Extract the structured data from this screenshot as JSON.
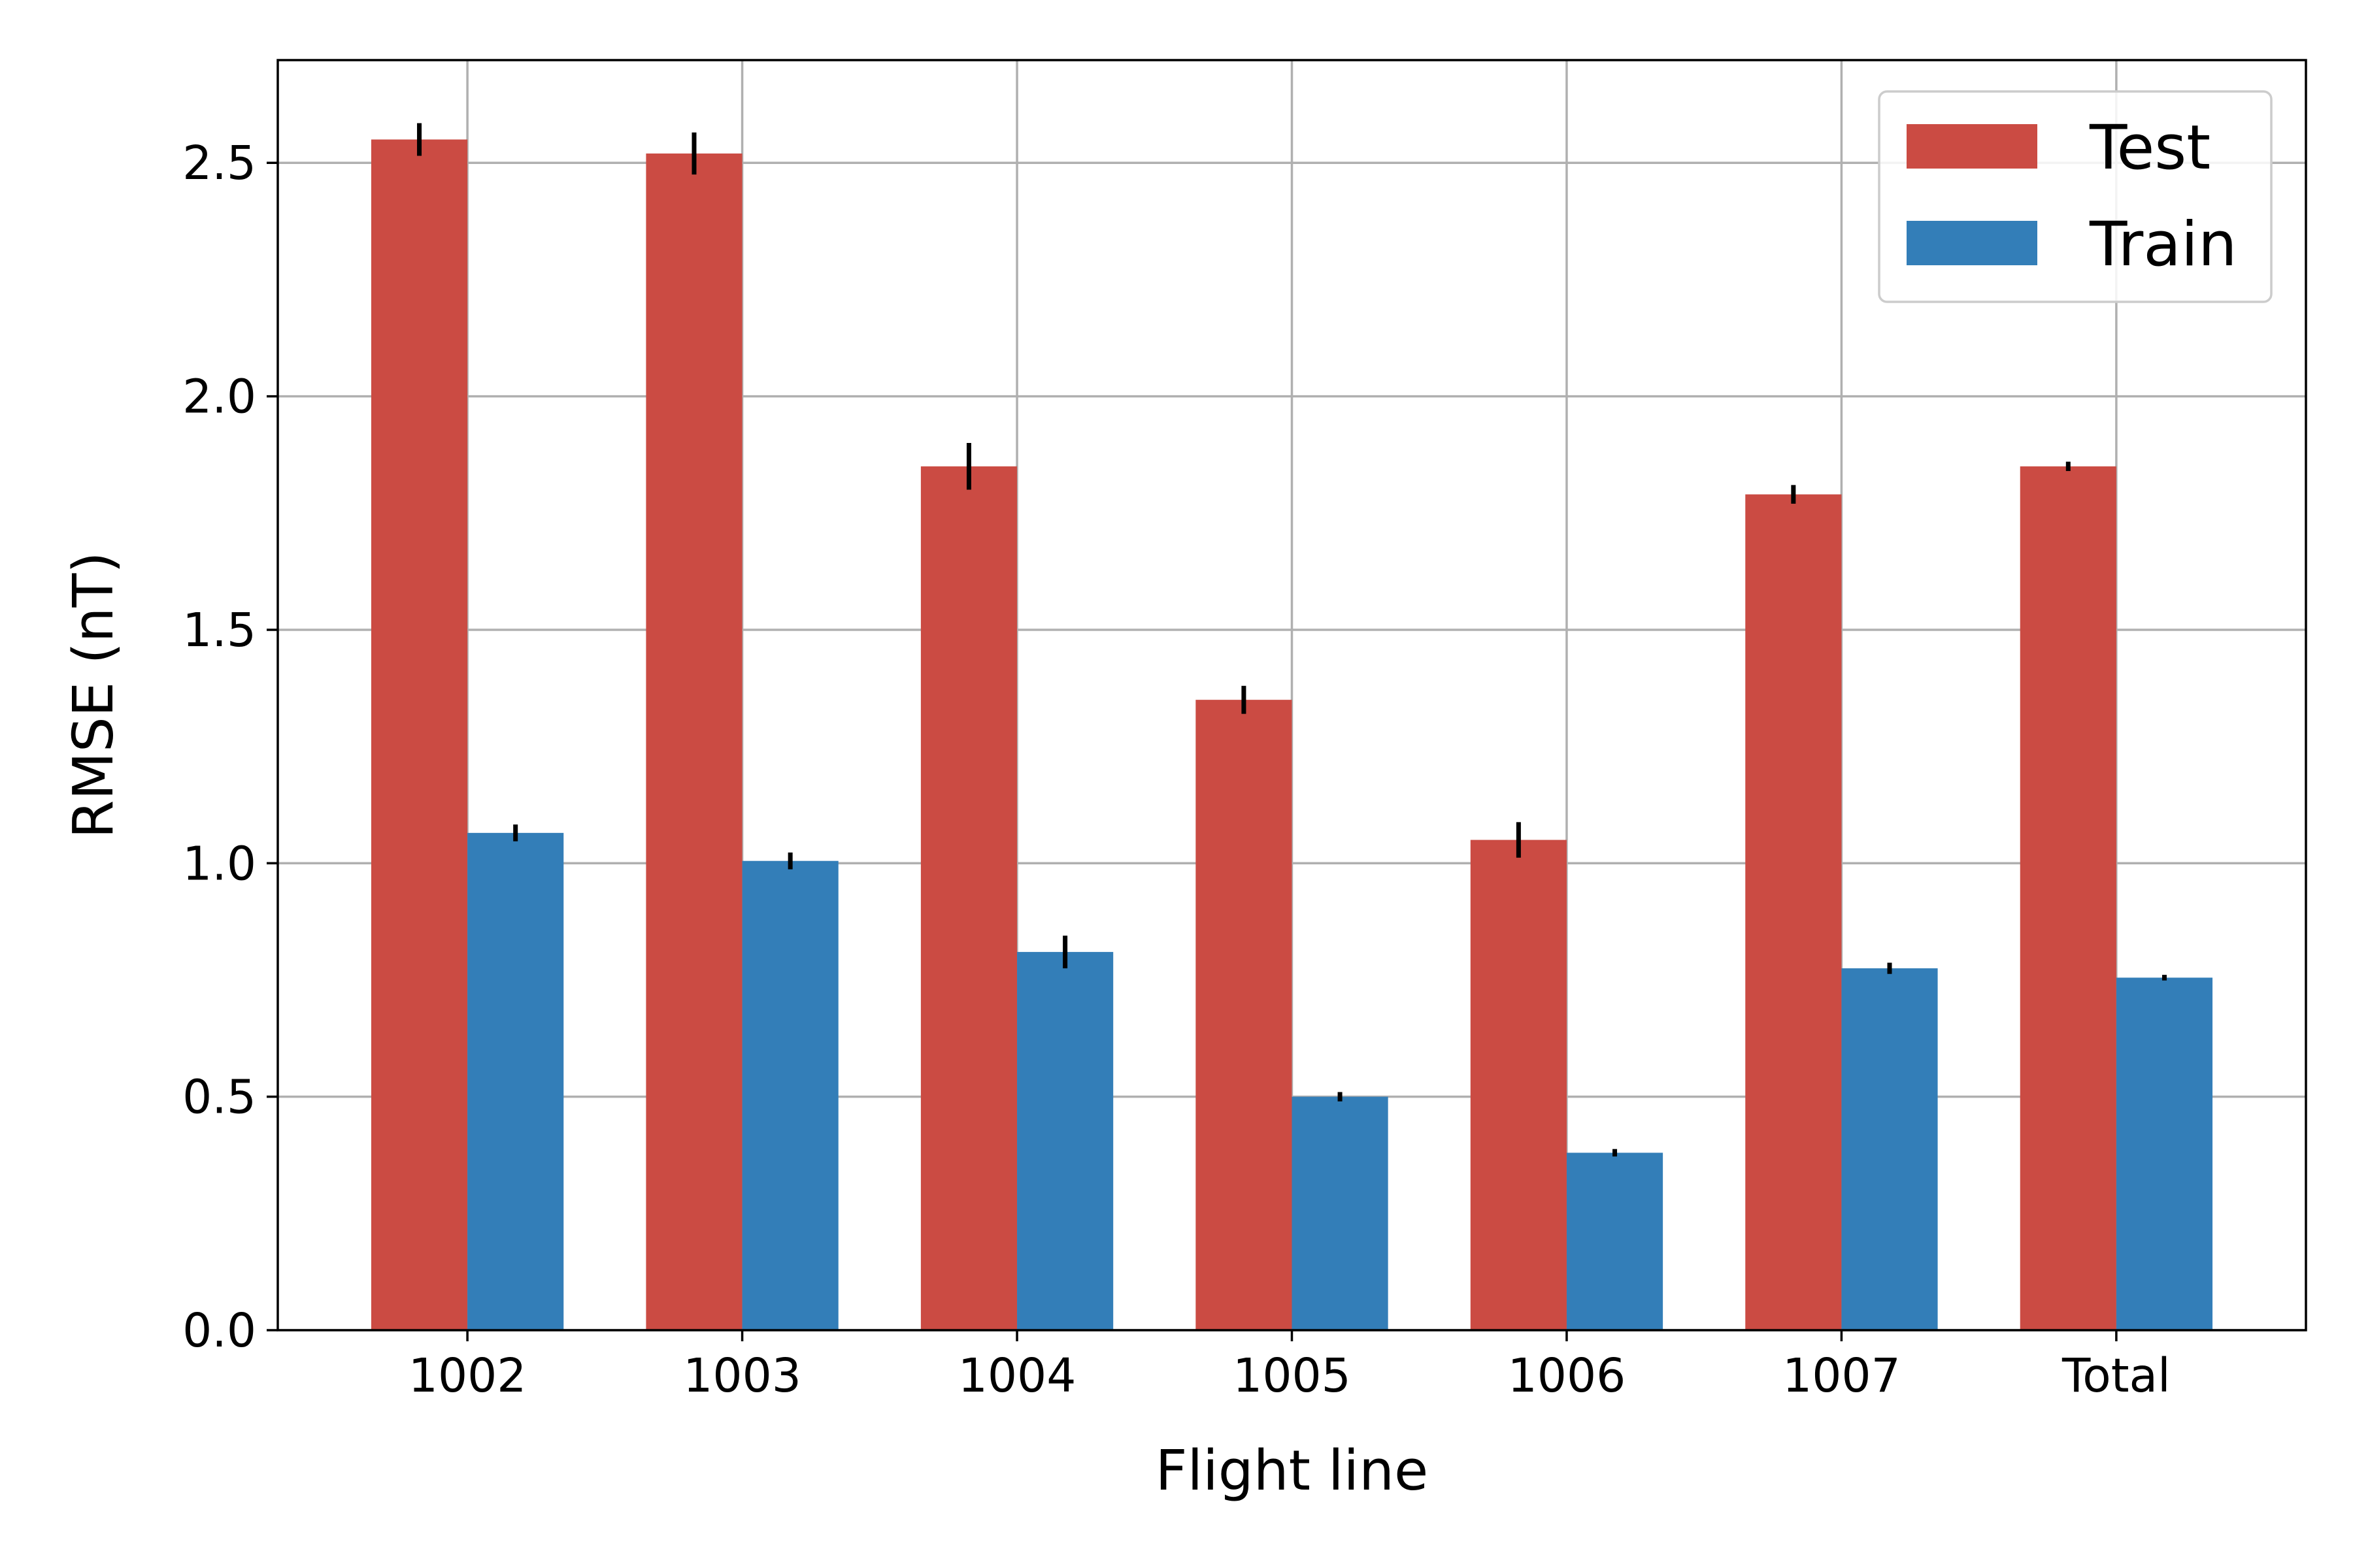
{
  "chart_data": {
    "type": "bar",
    "title": "",
    "xlabel": "Flight line",
    "ylabel": "RMSE (nT)",
    "categories": [
      "1002",
      "1003",
      "1004",
      "1005",
      "1006",
      "1007",
      "Total"
    ],
    "ylim": [
      0,
      2.72
    ],
    "yticks": [
      "0.0",
      "0.5",
      "1.0",
      "1.5",
      "2.0",
      "2.5"
    ],
    "grid": true,
    "legend_position": "top-right",
    "series": [
      {
        "name": "Test",
        "color": "#cb4b43",
        "values": [
          2.55,
          2.52,
          1.85,
          1.35,
          1.05,
          1.79,
          1.85
        ],
        "errors": [
          0.035,
          0.045,
          0.05,
          0.03,
          0.038,
          0.02,
          0.01
        ]
      },
      {
        "name": "Train",
        "color": "#337eb8",
        "values": [
          1.065,
          1.005,
          0.81,
          0.5,
          0.38,
          0.775,
          0.755
        ],
        "errors": [
          0.018,
          0.018,
          0.035,
          0.01,
          0.008,
          0.012,
          0.006
        ]
      }
    ]
  }
}
